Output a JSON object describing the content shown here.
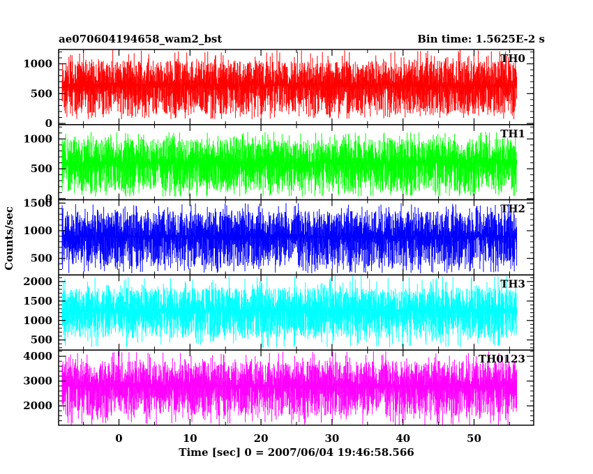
{
  "header": {
    "title": "ae070604194658_wam2_bst",
    "bin_time": "Bin time: 1.5625E-2 s"
  },
  "chart_data": {
    "type": "line",
    "title": "ae070604194658_wam2_bst",
    "subtitle": "Bin time: 1.5625E-2 s",
    "xlabel": "Time [sec] 0 = 2007/06/04 19:46:58.566",
    "ylabel": "Counts/sec",
    "xlim": [
      -8.5,
      58.4
    ],
    "x_data_range": [
      -8,
      56
    ],
    "xticks": [
      0,
      10,
      20,
      30,
      40,
      50
    ],
    "xtick_labels": [
      "0",
      "10",
      "20",
      "30",
      "40",
      "50"
    ],
    "grid": false,
    "panels": [
      {
        "name": "TH0",
        "color": "#ff0000",
        "ylim": [
          -20,
          1240
        ],
        "yticks": [
          0,
          500,
          1000
        ],
        "ytick_labels": [
          "0",
          "500",
          "1000"
        ],
        "value_range": [
          70,
          1240
        ],
        "typical_range": [
          150,
          1050
        ]
      },
      {
        "name": "TH1",
        "color": "#00ff00",
        "ylim": [
          -20,
          1240
        ],
        "yticks": [
          0,
          500,
          1000
        ],
        "ytick_labels": [
          "0",
          "500",
          "1000"
        ],
        "value_range": [
          30,
          1120
        ],
        "typical_range": [
          120,
          1000
        ]
      },
      {
        "name": "TH2",
        "color": "#0000ff",
        "ylim": [
          200,
          1560
        ],
        "yticks": [
          500,
          1000,
          1500
        ],
        "ytick_labels": [
          "500",
          "1000",
          "1500"
        ],
        "value_range": [
          230,
          1500
        ],
        "typical_range": [
          350,
          1350
        ]
      },
      {
        "name": "TH3",
        "color": "#00ffff",
        "ylim": [
          240,
          2170
        ],
        "yticks": [
          500,
          1000,
          1500,
          2000
        ],
        "ytick_labels": [
          "500",
          "1000",
          "1500",
          "2000"
        ],
        "value_range": [
          300,
          2160
        ],
        "typical_range": [
          550,
          1850
        ]
      },
      {
        "name": "TH0123",
        "color": "#ff00ff",
        "ylim": [
          1220,
          4250
        ],
        "yticks": [
          2000,
          3000,
          4000
        ],
        "ytick_labels": [
          "2000",
          "3000",
          "4000"
        ],
        "value_range": [
          1220,
          4200
        ],
        "typical_range": [
          1600,
          3800
        ]
      }
    ]
  }
}
